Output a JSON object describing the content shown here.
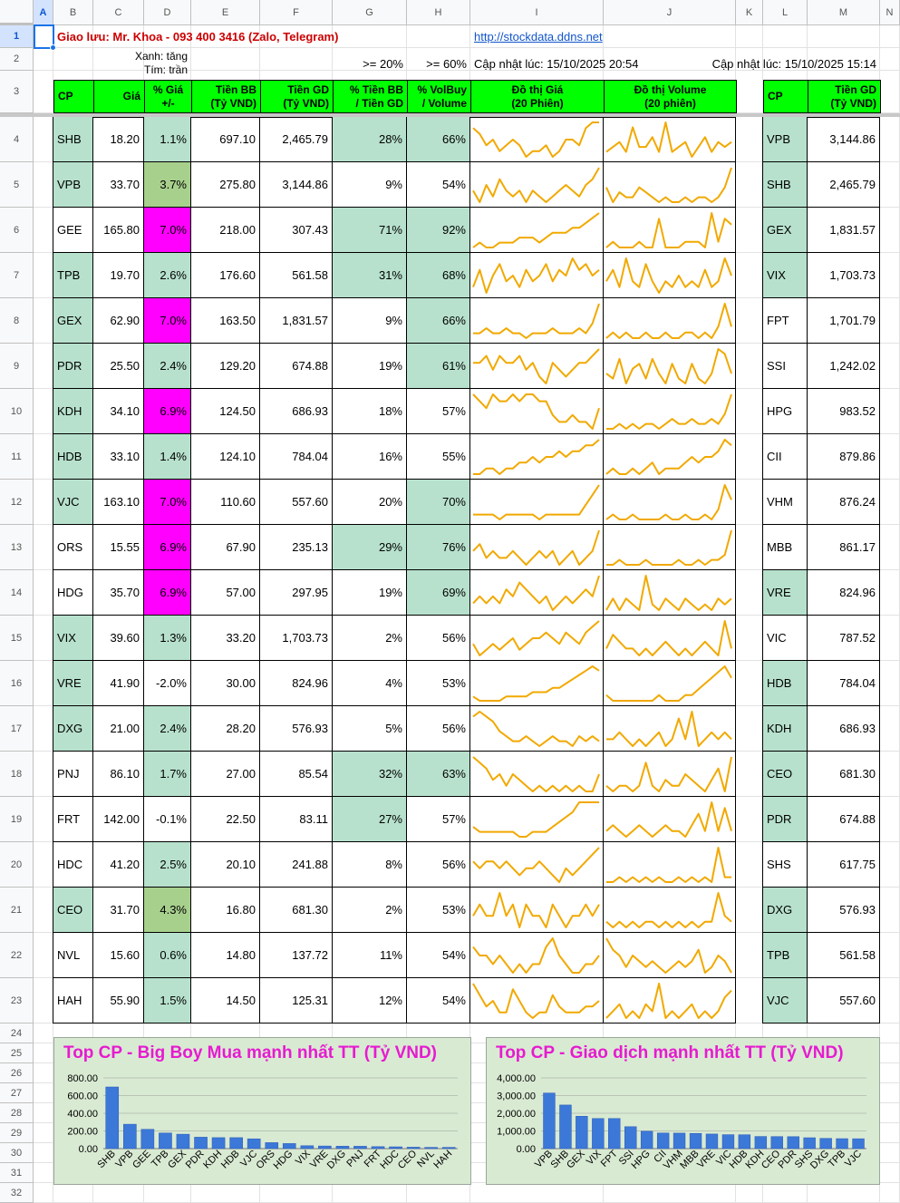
{
  "columns": [
    "A",
    "B",
    "C",
    "D",
    "E",
    "F",
    "G",
    "H",
    "I",
    "J",
    "K",
    "L",
    "M",
    "N"
  ],
  "rows": [
    "1",
    "2",
    "3",
    "4",
    "5",
    "6",
    "7",
    "8",
    "9",
    "10",
    "11",
    "12",
    "13",
    "14",
    "15",
    "16",
    "17",
    "18",
    "19",
    "20",
    "21",
    "22",
    "23",
    "24",
    "25",
    "26",
    "27",
    "28",
    "29",
    "30",
    "31",
    "32"
  ],
  "header": {
    "contact": "Giao lưu: Mr. Khoa - 093 400 3416 (Zalo, Telegram)",
    "link": "http://stockdata.ddns.net",
    "legend_green": "Xanh: tăng",
    "legend_purple": "Tím: trần",
    "threshold_1": ">= 20%",
    "threshold_2": ">= 60%",
    "updated_left": "Cập nhật lúc: 15/10/2025 20:54",
    "updated_right": "Cập nhật lúc: 15/10/2025 15:14"
  },
  "table_headers": {
    "cp": "CP",
    "gia": "Giá",
    "pct_gia_1": "% Giá",
    "pct_gia_2": "+/-",
    "tien_bb_1": "Tiền BB",
    "tien_bb_2": "(Tỷ VND)",
    "tien_gd_1": "Tiền GD",
    "tien_gd_2": "(Tỷ VND)",
    "pct_bb_1": "% Tiền BB",
    "pct_bb_2": "/ Tiền GD",
    "pct_vol_1": "% VolBuy",
    "pct_vol_2": "/ Volume",
    "do_thi_gia_1": "Đồ thị Giá",
    "do_thi_gia_2": "(20 Phiên)",
    "do_thi_vol_1": "Đồ thị Volume",
    "do_thi_vol_2": "(20 phiên)",
    "right_cp": "CP",
    "right_tien_1": "Tiền GD",
    "right_tien_2": "(Tỷ VND)"
  },
  "main_rows": [
    {
      "cp": "SHB",
      "gia": "18.20",
      "pct": "1.1%",
      "bb": "697.10",
      "gd": "2,465.79",
      "pbb": "28%",
      "pvol": "66%",
      "cpc": "green",
      "pc": "green",
      "pbbc": "green",
      "pvc": "green"
    },
    {
      "cp": "VPB",
      "gia": "33.70",
      "pct": "3.7%",
      "bb": "275.80",
      "gd": "3,144.86",
      "pbb": "9%",
      "pvol": "54%",
      "cpc": "green",
      "pc": "olive",
      "pbbc": "",
      "pvc": ""
    },
    {
      "cp": "GEE",
      "gia": "165.80",
      "pct": "7.0%",
      "bb": "218.00",
      "gd": "307.43",
      "pbb": "71%",
      "pvol": "92%",
      "cpc": "",
      "pc": "magenta",
      "pbbc": "green",
      "pvc": "green"
    },
    {
      "cp": "TPB",
      "gia": "19.70",
      "pct": "2.6%",
      "bb": "176.60",
      "gd": "561.58",
      "pbb": "31%",
      "pvol": "68%",
      "cpc": "green",
      "pc": "green",
      "pbbc": "green",
      "pvc": "green"
    },
    {
      "cp": "GEX",
      "gia": "62.90",
      "pct": "7.0%",
      "bb": "163.50",
      "gd": "1,831.57",
      "pbb": "9%",
      "pvol": "66%",
      "cpc": "green",
      "pc": "magenta",
      "pbbc": "",
      "pvc": "green"
    },
    {
      "cp": "PDR",
      "gia": "25.50",
      "pct": "2.4%",
      "bb": "129.20",
      "gd": "674.88",
      "pbb": "19%",
      "pvol": "61%",
      "cpc": "green",
      "pc": "green",
      "pbbc": "",
      "pvc": "green"
    },
    {
      "cp": "KDH",
      "gia": "34.10",
      "pct": "6.9%",
      "bb": "124.50",
      "gd": "686.93",
      "pbb": "18%",
      "pvol": "57%",
      "cpc": "green",
      "pc": "magenta",
      "pbbc": "",
      "pvc": ""
    },
    {
      "cp": "HDB",
      "gia": "33.10",
      "pct": "1.4%",
      "bb": "124.10",
      "gd": "784.04",
      "pbb": "16%",
      "pvol": "55%",
      "cpc": "green",
      "pc": "green",
      "pbbc": "",
      "pvc": ""
    },
    {
      "cp": "VJC",
      "gia": "163.10",
      "pct": "7.0%",
      "bb": "110.60",
      "gd": "557.60",
      "pbb": "20%",
      "pvol": "70%",
      "cpc": "green",
      "pc": "magenta",
      "pbbc": "",
      "pvc": "green"
    },
    {
      "cp": "ORS",
      "gia": "15.55",
      "pct": "6.9%",
      "bb": "67.90",
      "gd": "235.13",
      "pbb": "29%",
      "pvol": "76%",
      "cpc": "",
      "pc": "magenta",
      "pbbc": "green",
      "pvc": "green"
    },
    {
      "cp": "HDG",
      "gia": "35.70",
      "pct": "6.9%",
      "bb": "57.00",
      "gd": "297.95",
      "pbb": "19%",
      "pvol": "69%",
      "cpc": "",
      "pc": "magenta",
      "pbbc": "",
      "pvc": "green"
    },
    {
      "cp": "VIX",
      "gia": "39.60",
      "pct": "1.3%",
      "bb": "33.20",
      "gd": "1,703.73",
      "pbb": "2%",
      "pvol": "56%",
      "cpc": "green",
      "pc": "green",
      "pbbc": "",
      "pvc": ""
    },
    {
      "cp": "VRE",
      "gia": "41.90",
      "pct": "-2.0%",
      "bb": "30.00",
      "gd": "824.96",
      "pbb": "4%",
      "pvol": "53%",
      "cpc": "green",
      "pc": "",
      "pbbc": "",
      "pvc": ""
    },
    {
      "cp": "DXG",
      "gia": "21.00",
      "pct": "2.4%",
      "bb": "28.20",
      "gd": "576.93",
      "pbb": "5%",
      "pvol": "56%",
      "cpc": "green",
      "pc": "green",
      "pbbc": "",
      "pvc": ""
    },
    {
      "cp": "PNJ",
      "gia": "86.10",
      "pct": "1.7%",
      "bb": "27.00",
      "gd": "85.54",
      "pbb": "32%",
      "pvol": "63%",
      "cpc": "",
      "pc": "green",
      "pbbc": "green",
      "pvc": "green"
    },
    {
      "cp": "FRT",
      "gia": "142.00",
      "pct": "-0.1%",
      "bb": "22.50",
      "gd": "83.11",
      "pbb": "27%",
      "pvol": "57%",
      "cpc": "",
      "pc": "",
      "pbbc": "green",
      "pvc": ""
    },
    {
      "cp": "HDC",
      "gia": "41.20",
      "pct": "2.5%",
      "bb": "20.10",
      "gd": "241.88",
      "pbb": "8%",
      "pvol": "56%",
      "cpc": "",
      "pc": "green",
      "pbbc": "",
      "pvc": ""
    },
    {
      "cp": "CEO",
      "gia": "31.70",
      "pct": "4.3%",
      "bb": "16.80",
      "gd": "681.30",
      "pbb": "2%",
      "pvol": "53%",
      "cpc": "green",
      "pc": "olive",
      "pbbc": "",
      "pvc": ""
    },
    {
      "cp": "NVL",
      "gia": "15.60",
      "pct": "0.6%",
      "bb": "14.80",
      "gd": "137.72",
      "pbb": "11%",
      "pvol": "54%",
      "cpc": "",
      "pc": "green",
      "pbbc": "",
      "pvc": ""
    },
    {
      "cp": "HAH",
      "gia": "55.90",
      "pct": "1.5%",
      "bb": "14.50",
      "gd": "125.31",
      "pbb": "12%",
      "pvol": "54%",
      "cpc": "",
      "pc": "green",
      "pbbc": "",
      "pvc": ""
    }
  ],
  "right_rows": [
    {
      "cp": "VPB",
      "gd": "3,144.86",
      "c": "green"
    },
    {
      "cp": "SHB",
      "gd": "2,465.79",
      "c": "green"
    },
    {
      "cp": "GEX",
      "gd": "1,831.57",
      "c": "green"
    },
    {
      "cp": "VIX",
      "gd": "1,703.73",
      "c": "green"
    },
    {
      "cp": "FPT",
      "gd": "1,701.79",
      "c": ""
    },
    {
      "cp": "SSI",
      "gd": "1,242.02",
      "c": ""
    },
    {
      "cp": "HPG",
      "gd": "983.52",
      "c": ""
    },
    {
      "cp": "CII",
      "gd": "879.86",
      "c": ""
    },
    {
      "cp": "VHM",
      "gd": "876.24",
      "c": ""
    },
    {
      "cp": "MBB",
      "gd": "861.17",
      "c": ""
    },
    {
      "cp": "VRE",
      "gd": "824.96",
      "c": "green"
    },
    {
      "cp": "VIC",
      "gd": "787.52",
      "c": ""
    },
    {
      "cp": "HDB",
      "gd": "784.04",
      "c": "green"
    },
    {
      "cp": "KDH",
      "gd": "686.93",
      "c": "green"
    },
    {
      "cp": "CEO",
      "gd": "681.30",
      "c": "green"
    },
    {
      "cp": "PDR",
      "gd": "674.88",
      "c": "green"
    },
    {
      "cp": "SHS",
      "gd": "617.75",
      "c": ""
    },
    {
      "cp": "DXG",
      "gd": "576.93",
      "c": "green"
    },
    {
      "cp": "TPB",
      "gd": "561.58",
      "c": "green"
    },
    {
      "cp": "VJC",
      "gd": "557.60",
      "c": "green"
    }
  ],
  "sparklines_price": [
    [
      6,
      5,
      3,
      4,
      2,
      3,
      4,
      3,
      1,
      2,
      2,
      3,
      1,
      2,
      4,
      4,
      3,
      6,
      7,
      7
    ],
    [
      3,
      1,
      4,
      2,
      5,
      3,
      2,
      3,
      1,
      3,
      2,
      1,
      2,
      3,
      4,
      3,
      2,
      4,
      5,
      7
    ],
    [
      1,
      2,
      1,
      1,
      2,
      2,
      2,
      3,
      3,
      3,
      2,
      3,
      4,
      4,
      4,
      5,
      5,
      6,
      7,
      8
    ],
    [
      2,
      5,
      1,
      4,
      6,
      3,
      4,
      2,
      5,
      3,
      4,
      6,
      3,
      5,
      4,
      7,
      5,
      6,
      4,
      5
    ],
    [
      2,
      2,
      3,
      2,
      2,
      3,
      2,
      2,
      1,
      2,
      2,
      2,
      3,
      2,
      2,
      2,
      3,
      2,
      4,
      8
    ],
    [
      4,
      4,
      5,
      3,
      5,
      4,
      4,
      5,
      3,
      4,
      2,
      1,
      4,
      3,
      2,
      3,
      4,
      4,
      5,
      6
    ],
    [
      6,
      5,
      4,
      6,
      5,
      5,
      6,
      5,
      6,
      6,
      5,
      5,
      3,
      2,
      2,
      3,
      2,
      2,
      1,
      4
    ],
    [
      2,
      2,
      3,
      3,
      2,
      3,
      3,
      4,
      4,
      5,
      4,
      5,
      5,
      6,
      5,
      6,
      6,
      7,
      7,
      8
    ],
    [
      2,
      2,
      2,
      2,
      1,
      2,
      2,
      2,
      2,
      2,
      1,
      2,
      2,
      2,
      2,
      2,
      2,
      4,
      6,
      8
    ],
    [
      4,
      5,
      3,
      4,
      3,
      3,
      4,
      3,
      2,
      3,
      4,
      3,
      4,
      2,
      3,
      4,
      2,
      3,
      4,
      7
    ],
    [
      2,
      3,
      2,
      3,
      2,
      4,
      3,
      5,
      4,
      3,
      2,
      3,
      1,
      2,
      3,
      2,
      3,
      4,
      3,
      6
    ],
    [
      3,
      1,
      2,
      3,
      2,
      3,
      4,
      2,
      3,
      4,
      4,
      5,
      4,
      3,
      5,
      4,
      3,
      5,
      6,
      7
    ],
    [
      2,
      1,
      1,
      1,
      1,
      2,
      2,
      2,
      2,
      3,
      3,
      3,
      4,
      4,
      5,
      6,
      7,
      8,
      9,
      8
    ],
    [
      7,
      8,
      7,
      6,
      4,
      3,
      2,
      2,
      3,
      2,
      1,
      2,
      3,
      2,
      2,
      1,
      3,
      2,
      3,
      2
    ],
    [
      8,
      7,
      6,
      4,
      5,
      3,
      5,
      4,
      3,
      2,
      3,
      2,
      3,
      2,
      3,
      2,
      3,
      2,
      2,
      5
    ],
    [
      3,
      2,
      2,
      2,
      2,
      2,
      2,
      1,
      1,
      2,
      2,
      2,
      3,
      4,
      5,
      6,
      8,
      8,
      8,
      8
    ],
    [
      4,
      3,
      4,
      4,
      3,
      4,
      3,
      2,
      3,
      3,
      4,
      3,
      2,
      1,
      3,
      2,
      3,
      4,
      5,
      6
    ],
    [
      3,
      4,
      3,
      3,
      5,
      3,
      4,
      2,
      4,
      3,
      3,
      2,
      4,
      3,
      2,
      3,
      3,
      4,
      3,
      4
    ],
    [
      5,
      4,
      4,
      3,
      4,
      3,
      2,
      3,
      2,
      3,
      3,
      5,
      6,
      4,
      3,
      2,
      2,
      3,
      3,
      4
    ],
    [
      7,
      5,
      3,
      4,
      2,
      2,
      6,
      4,
      2,
      1,
      2,
      2,
      5,
      3,
      2,
      2,
      2,
      3,
      3,
      4
    ]
  ],
  "sparklines_volume": [
    [
      3,
      4,
      5,
      3,
      8,
      4,
      4,
      6,
      3,
      9,
      3,
      4,
      5,
      2,
      4,
      6,
      3,
      5,
      4,
      5
    ],
    [
      5,
      2,
      4,
      3,
      3,
      5,
      4,
      3,
      2,
      3,
      2,
      2,
      3,
      2,
      3,
      3,
      2,
      3,
      5,
      9
    ],
    [
      2,
      3,
      2,
      2,
      2,
      3,
      2,
      2,
      7,
      2,
      2,
      2,
      3,
      3,
      3,
      2,
      8,
      3,
      7,
      6
    ],
    [
      4,
      6,
      3,
      8,
      4,
      3,
      7,
      4,
      2,
      4,
      3,
      5,
      3,
      4,
      3,
      6,
      3,
      4,
      8,
      5
    ],
    [
      2,
      3,
      2,
      3,
      2,
      2,
      3,
      2,
      2,
      3,
      2,
      2,
      3,
      3,
      2,
      3,
      2,
      4,
      8,
      4
    ],
    [
      4,
      3,
      7,
      2,
      5,
      6,
      3,
      7,
      4,
      2,
      6,
      3,
      2,
      6,
      3,
      2,
      4,
      9,
      8,
      4
    ],
    [
      2,
      2,
      3,
      2,
      3,
      2,
      3,
      3,
      2,
      3,
      4,
      3,
      3,
      4,
      3,
      3,
      4,
      3,
      5,
      9
    ],
    [
      2,
      3,
      2,
      2,
      3,
      2,
      3,
      4,
      2,
      3,
      3,
      3,
      4,
      5,
      4,
      5,
      5,
      6,
      8,
      7
    ],
    [
      2,
      3,
      2,
      2,
      3,
      2,
      2,
      2,
      2,
      3,
      2,
      2,
      3,
      2,
      2,
      3,
      2,
      4,
      9,
      6
    ],
    [
      2,
      2,
      3,
      2,
      2,
      2,
      3,
      2,
      2,
      2,
      2,
      3,
      2,
      2,
      3,
      2,
      3,
      3,
      4,
      9
    ],
    [
      2,
      4,
      2,
      4,
      3,
      2,
      8,
      3,
      2,
      4,
      3,
      2,
      4,
      3,
      2,
      3,
      2,
      4,
      3,
      4
    ],
    [
      3,
      5,
      4,
      3,
      3,
      2,
      3,
      2,
      3,
      4,
      3,
      2,
      3,
      2,
      3,
      4,
      3,
      2,
      7,
      3
    ],
    [
      3,
      2,
      2,
      2,
      2,
      2,
      2,
      2,
      3,
      2,
      2,
      2,
      3,
      3,
      4,
      5,
      6,
      7,
      8,
      6
    ],
    [
      3,
      3,
      4,
      3,
      2,
      3,
      2,
      3,
      4,
      2,
      3,
      6,
      3,
      7,
      2,
      3,
      4,
      3,
      4,
      3
    ],
    [
      3,
      2,
      3,
      3,
      2,
      3,
      7,
      3,
      2,
      4,
      3,
      3,
      5,
      4,
      3,
      2,
      4,
      6,
      2,
      8
    ],
    [
      3,
      4,
      3,
      2,
      3,
      4,
      3,
      2,
      3,
      4,
      3,
      3,
      2,
      4,
      6,
      3,
      8,
      3,
      7,
      3
    ],
    [
      2,
      2,
      3,
      2,
      3,
      2,
      3,
      2,
      3,
      2,
      2,
      3,
      2,
      3,
      2,
      3,
      2,
      9,
      3,
      3
    ],
    [
      3,
      2,
      3,
      2,
      3,
      2,
      3,
      3,
      2,
      3,
      2,
      3,
      2,
      3,
      2,
      3,
      3,
      8,
      4,
      3
    ],
    [
      8,
      6,
      5,
      3,
      5,
      4,
      3,
      4,
      3,
      2,
      3,
      4,
      3,
      4,
      6,
      2,
      3,
      5,
      4,
      2
    ],
    [
      3,
      4,
      5,
      3,
      4,
      3,
      5,
      4,
      8,
      3,
      4,
      3,
      4,
      5,
      3,
      4,
      3,
      4,
      6,
      7
    ]
  ],
  "chart_data": [
    {
      "type": "bar",
      "title": "Top CP - Big Boy Mua mạnh nhất TT (Tỷ VND)",
      "categories": [
        "SHB",
        "VPB",
        "GEE",
        "TPB",
        "GEX",
        "PDR",
        "KDH",
        "HDB",
        "VJC",
        "ORS",
        "HDG",
        "VIX",
        "VRE",
        "DXG",
        "PNJ",
        "FRT",
        "HDC",
        "CEO",
        "NVL",
        "HAH"
      ],
      "values": [
        697.1,
        275.8,
        218.0,
        176.6,
        163.5,
        129.2,
        124.5,
        124.1,
        110.6,
        67.9,
        57.0,
        33.2,
        30.0,
        28.2,
        27.0,
        22.5,
        20.1,
        16.8,
        14.8,
        14.5
      ],
      "yticks": [
        "0.00",
        "200.00",
        "400.00",
        "600.00",
        "800.00"
      ],
      "ylim": [
        0,
        800
      ],
      "grid": true,
      "bar_color": "#3c78d8"
    },
    {
      "type": "bar",
      "title": "Top CP - Giao dịch mạnh nhất TT (Tỷ VND)",
      "categories": [
        "VPB",
        "SHB",
        "GEX",
        "VIX",
        "FPT",
        "SSI",
        "HPG",
        "CII",
        "VHM",
        "MBB",
        "VRE",
        "VIC",
        "HDB",
        "KDH",
        "CEO",
        "PDR",
        "SHS",
        "DXG",
        "TPB",
        "VJC"
      ],
      "values": [
        3144.86,
        2465.79,
        1831.57,
        1703.73,
        1701.79,
        1242.02,
        983.52,
        879.86,
        876.24,
        861.17,
        824.96,
        787.52,
        784.04,
        686.93,
        681.3,
        674.88,
        617.75,
        576.93,
        561.58,
        557.6
      ],
      "yticks": [
        "0.00",
        "1,000.00",
        "2,000.00",
        "3,000.00",
        "4,000.00"
      ],
      "ylim": [
        0,
        4000
      ],
      "grid": true,
      "bar_color": "#3c78d8"
    }
  ],
  "colors": {
    "green_cell": "#b7e1cd",
    "header_green": "#00ff00",
    "magenta": "#ff00ff",
    "spark": "#f1a900",
    "title_red": "#cc0000",
    "chart_title": "#e61bd0"
  }
}
